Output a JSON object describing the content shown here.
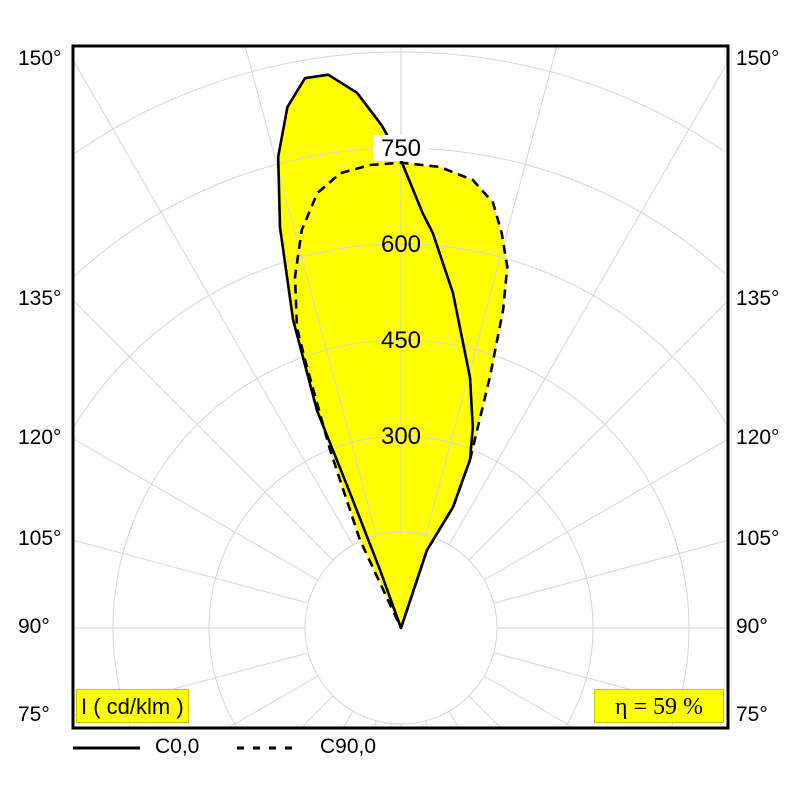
{
  "chart_data": {
    "type": "polar",
    "title": "",
    "unit_label": "I ( cd/klm )",
    "efficiency_label": "η = 59 %",
    "radial_ticks": [
      300,
      450,
      600,
      750
    ],
    "radial_grid": [
      150,
      300,
      450,
      600,
      750,
      900,
      1050,
      1200
    ],
    "angle_labels_left": [
      "150°",
      "135°",
      "120°",
      "105°",
      "90°",
      "75°"
    ],
    "angle_labels_right": [
      "150°",
      "135°",
      "120°",
      "105°",
      "90°",
      "75°"
    ],
    "angle_values": [
      150,
      135,
      120,
      105,
      90,
      75
    ],
    "angle_step_deg": 15,
    "fill_color": "#ffff00",
    "series": [
      {
        "name": "C0,0",
        "style": "solid",
        "points": [
          [
            0,
            0
          ],
          [
            161.6,
            128
          ],
          [
            156.7,
            206
          ],
          [
            157.7,
            284
          ],
          [
            160.3,
            333
          ],
          [
            164.6,
            406
          ],
          [
            171.2,
            530
          ],
          [
            175.4,
            619
          ],
          [
            177,
            649
          ],
          [
            180,
            731
          ],
          [
            182.2,
            786
          ],
          [
            184.7,
            839
          ],
          [
            187.5,
            872
          ],
          [
            189.9,
            872
          ],
          [
            192.3,
            833
          ],
          [
            194.6,
            761
          ],
          [
            196.8,
            654
          ],
          [
            199.3,
            510
          ],
          [
            201.1,
            365
          ],
          [
            200.7,
            226
          ],
          [
            199.9,
            96
          ],
          [
            0,
            0
          ]
        ]
      },
      {
        "name": "C90,0",
        "style": "dashed",
        "points": [
          [
            157.7,
            284
          ],
          [
            160.5,
            416
          ],
          [
            162.2,
            522
          ],
          [
            163.6,
            588
          ],
          [
            165.7,
            637
          ],
          [
            167.8,
            680
          ],
          [
            170.9,
            709
          ],
          [
            175.2,
            723
          ],
          [
            180,
            727
          ],
          [
            183.8,
            725
          ],
          [
            187.6,
            717
          ],
          [
            190.9,
            692
          ],
          [
            194,
            641
          ],
          [
            196.8,
            573
          ],
          [
            199.1,
            497
          ],
          [
            199.7,
            445
          ],
          [
            201.7,
            300
          ],
          [
            205,
            152
          ],
          [
            0,
            0
          ],
          [
            161.6,
            128
          ],
          [
            156.7,
            206
          ],
          [
            157.7,
            284
          ]
        ]
      }
    ]
  }
}
